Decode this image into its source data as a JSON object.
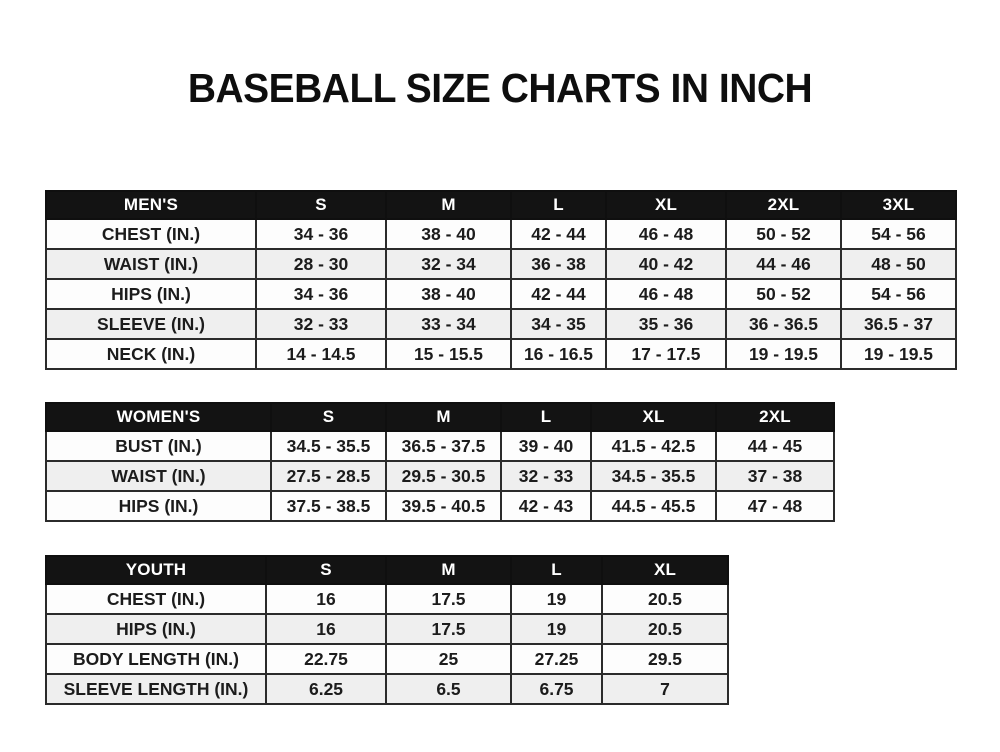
{
  "page": {
    "title": "BASEBALL SIZE CHARTS IN INCH"
  },
  "colors": {
    "header_bg": "#131313",
    "header_text": "#ffffff",
    "row_bg": "#fdfdfd",
    "row_alt_bg": "#efefef",
    "border": "#2b2b2b",
    "text": "#1c1c1c"
  },
  "tables": [
    {
      "id": "mens",
      "header": [
        "MEN'S",
        "S",
        "M",
        "L",
        "XL",
        "2XL",
        "3XL"
      ],
      "rows": [
        [
          "CHEST (IN.)",
          "34 - 36",
          "38 - 40",
          "42 - 44",
          "46 - 48",
          "50 - 52",
          "54 - 56"
        ],
        [
          "WAIST (IN.)",
          "28 - 30",
          "32 - 34",
          "36 - 38",
          "40 - 42",
          "44 - 46",
          "48 - 50"
        ],
        [
          "HIPS (IN.)",
          "34 - 36",
          "38 - 40",
          "42 - 44",
          "46 - 48",
          "50 - 52",
          "54 - 56"
        ],
        [
          "SLEEVE (IN.)",
          "32 - 33",
          "33 - 34",
          "34 - 35",
          "35 - 36",
          "36 - 36.5",
          "36.5 - 37"
        ],
        [
          "NECK (IN.)",
          "14 - 14.5",
          "15 - 15.5",
          "16 - 16.5",
          "17 - 17.5",
          "19 - 19.5",
          "19 - 19.5"
        ]
      ]
    },
    {
      "id": "womens",
      "header": [
        "WOMEN'S",
        "S",
        "M",
        "L",
        "XL",
        "2XL"
      ],
      "rows": [
        [
          "BUST (IN.)",
          "34.5 - 35.5",
          "36.5 - 37.5",
          "39 - 40",
          "41.5 - 42.5",
          "44 - 45"
        ],
        [
          "WAIST (IN.)",
          "27.5 - 28.5",
          "29.5 - 30.5",
          "32 - 33",
          "34.5 - 35.5",
          "37 - 38"
        ],
        [
          "HIPS (IN.)",
          "37.5 - 38.5",
          "39.5 - 40.5",
          "42 - 43",
          "44.5 - 45.5",
          "47 - 48"
        ]
      ]
    },
    {
      "id": "youth",
      "header": [
        "YOUTH",
        "S",
        "M",
        "L",
        "XL"
      ],
      "rows": [
        [
          "CHEST (IN.)",
          "16",
          "17.5",
          "19",
          "20.5"
        ],
        [
          "HIPS (IN.)",
          "16",
          "17.5",
          "19",
          "20.5"
        ],
        [
          "BODY LENGTH (IN.)",
          "22.75",
          "25",
          "27.25",
          "29.5"
        ],
        [
          "SLEEVE LENGTH (IN.)",
          "6.25",
          "6.5",
          "6.75",
          "7"
        ]
      ]
    }
  ]
}
